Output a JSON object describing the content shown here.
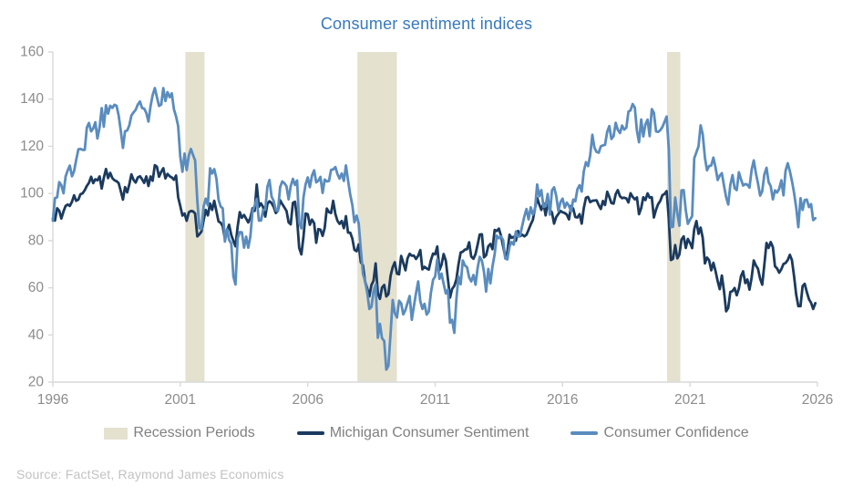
{
  "title": "Consumer sentiment indices",
  "source": "Source: FactSet, Raymond James Economics",
  "colors": {
    "title": "#3779BC",
    "axis_line": "#D9D9D9",
    "tick_label": "#8C8C8C",
    "legend_text": "#808080",
    "source_text": "#C2C2C2",
    "background": "#FFFFFF"
  },
  "legend": {
    "items": [
      {
        "label": "Recession Periods",
        "swatch": "rect",
        "color": "#E5E1CF"
      },
      {
        "label": "Michigan Consumer Sentiment",
        "swatch": "line",
        "color": "#1B3A5E"
      },
      {
        "label": "Consumer Confidence",
        "swatch": "line",
        "color": "#5A8CBE"
      }
    ]
  },
  "chart_data": {
    "type": "line",
    "title": "Consumer sentiment indices",
    "xlabel": "",
    "ylabel": "",
    "grid": false,
    "legend_position": "bottom",
    "x_range": [
      1996,
      2026
    ],
    "y_range": [
      20,
      160
    ],
    "x_ticks": [
      1996,
      2001,
      2006,
      2011,
      2016,
      2021,
      2026
    ],
    "y_ticks": [
      20,
      40,
      60,
      80,
      100,
      120,
      140,
      160
    ],
    "recession_bands": {
      "color": "#E5E1CF",
      "periods": [
        [
          2001.2,
          2001.95
        ],
        [
          2007.95,
          2009.5
        ],
        [
          2020.1,
          2020.62
        ]
      ]
    },
    "series": [
      {
        "name": "Michigan Consumer Sentiment",
        "color": "#1B3A5E",
        "start_year": 1996,
        "frequency": "monthly",
        "values": [
          89.3,
          88.5,
          93.7,
          92.7,
          89.4,
          92.4,
          94.7,
          95.3,
          94.7,
          96.5,
          99.2,
          96.9,
          97.4,
          99.7,
          100.0,
          101.4,
          103.2,
          104.5,
          107.1,
          104.4,
          106.0,
          105.6,
          107.2,
          102.1,
          106.6,
          110.4,
          106.5,
          108.7,
          106.5,
          105.6,
          105.2,
          104.4,
          100.9,
          97.4,
          102.7,
          100.5,
          103.9,
          108.1,
          105.7,
          104.6,
          106.8,
          107.3,
          106.0,
          104.5,
          107.2,
          103.2,
          107.2,
          105.4,
          112.0,
          111.3,
          107.1,
          109.2,
          110.7,
          106.4,
          108.3,
          107.3,
          106.8,
          105.8,
          107.6,
          98.4,
          94.7,
          90.6,
          91.5,
          88.4,
          92.0,
          92.6,
          92.4,
          91.5,
          81.8,
          82.7,
          83.9,
          88.8,
          93.0,
          90.7,
          95.7,
          93.0,
          96.9,
          92.4,
          88.1,
          87.6,
          86.1,
          80.6,
          84.2,
          86.7,
          82.4,
          79.9,
          77.6,
          86.0,
          92.1,
          89.7,
          90.9,
          89.3,
          87.7,
          89.6,
          93.7,
          92.6,
          103.8,
          94.4,
          95.8,
          94.2,
          90.2,
          95.6,
          96.7,
          95.9,
          94.2,
          91.7,
          92.8,
          97.1,
          95.5,
          94.1,
          92.6,
          87.7,
          86.9,
          96.0,
          96.5,
          89.1,
          76.9,
          74.2,
          81.6,
          91.5,
          91.2,
          86.7,
          88.9,
          87.4,
          79.1,
          84.9,
          84.7,
          82.0,
          85.4,
          93.6,
          92.1,
          91.7,
          96.9,
          91.3,
          88.4,
          87.1,
          88.3,
          85.3,
          90.4,
          83.4,
          83.4,
          80.9,
          76.1,
          75.5,
          78.4,
          70.8,
          69.5,
          62.6,
          59.8,
          56.4,
          61.2,
          63.0,
          70.3,
          57.6,
          55.3,
          60.1,
          61.2,
          56.3,
          57.3,
          65.1,
          68.7,
          70.8,
          66.0,
          65.7,
          73.5,
          70.6,
          67.4,
          72.5,
          74.4,
          73.6,
          73.6,
          72.2,
          73.6,
          76.0,
          67.8,
          68.9,
          68.2,
          67.7,
          71.6,
          74.5,
          74.2,
          77.5,
          67.5,
          69.8,
          74.3,
          71.5,
          63.7,
          55.8,
          59.5,
          60.8,
          63.6,
          69.9,
          75.0,
          75.3,
          76.2,
          76.4,
          79.3,
          73.2,
          72.3,
          74.3,
          78.3,
          82.6,
          82.7,
          72.9,
          73.8,
          77.6,
          78.6,
          76.4,
          84.5,
          84.1,
          85.1,
          82.1,
          77.5,
          73.2,
          75.1,
          82.5,
          81.2,
          81.6,
          80.0,
          84.1,
          81.9,
          82.5,
          81.8,
          82.5,
          84.6,
          86.9,
          88.8,
          93.6,
          98.1,
          95.4,
          93.0,
          95.9,
          90.7,
          96.1,
          93.1,
          91.9,
          87.2,
          90.0,
          91.3,
          92.6,
          92.0,
          91.7,
          91.0,
          89.0,
          94.7,
          93.5,
          90.0,
          89.8,
          91.2,
          87.2,
          93.8,
          98.2,
          98.5,
          96.3,
          96.9,
          97.0,
          97.1,
          95.0,
          93.4,
          96.8,
          95.1,
          100.7,
          98.5,
          95.9,
          95.7,
          99.7,
          101.4,
          98.8,
          98.0,
          98.2,
          97.9,
          96.2,
          100.1,
          98.6,
          97.5,
          98.3,
          91.2,
          93.8,
          98.4,
          97.2,
          100.0,
          98.2,
          98.4,
          89.8,
          93.2,
          95.5,
          96.8,
          99.3,
          99.8,
          101.0,
          89.1,
          71.8,
          72.3,
          78.1,
          72.5,
          74.1,
          80.4,
          81.8,
          76.9,
          80.7,
          79.0,
          76.8,
          84.9,
          88.3,
          82.9,
          85.5,
          81.2,
          70.3,
          72.8,
          71.7,
          67.4,
          70.6,
          67.2,
          62.8,
          59.4,
          65.2,
          58.4,
          50.0,
          51.5,
          58.2,
          58.6,
          59.9,
          56.8,
          59.7,
          64.9,
          67.0,
          62.0,
          63.5,
          59.2,
          64.4,
          71.6,
          69.5,
          68.1,
          63.8,
          61.3,
          69.7,
          79.0,
          76.9,
          79.4,
          77.2,
          69.1,
          68.2,
          66.4,
          67.9,
          70.1,
          70.5,
          71.8,
          74.0,
          71.7,
          64.7,
          57.0,
          52.2,
          52.2,
          60.7,
          61.7,
          58.2,
          55.1,
          53.6,
          51.0,
          53.5
        ]
      },
      {
        "name": "Consumer Confidence",
        "color": "#5A8CBE",
        "start_year": 1996,
        "frequency": "monthly",
        "values": [
          88.4,
          98.0,
          98.4,
          104.8,
          103.5,
          100.1,
          107.2,
          109.8,
          111.8,
          107.3,
          109.5,
          114.2,
          118.7,
          118.9,
          118.5,
          118.5,
          127.9,
          129.9,
          126.3,
          127.6,
          130.2,
          123.3,
          128.1,
          136.2,
          128.3,
          137.4,
          133.8,
          137.2,
          136.3,
          137.6,
          137.2,
          133.1,
          126.4,
          119.3,
          126.4,
          126.7,
          128.9,
          133.1,
          134.4,
          135.5,
          137.7,
          139.0,
          136.2,
          136.0,
          134.2,
          130.5,
          137.0,
          141.7,
          144.7,
          140.8,
          137.1,
          137.7,
          144.7,
          139.2,
          143.0,
          140.8,
          142.5,
          135.8,
          132.6,
          128.6,
          115.7,
          109.2,
          116.9,
          109.9,
          116.1,
          118.9,
          116.3,
          114.0,
          97.0,
          85.3,
          84.9,
          94.6,
          97.8,
          95.0,
          110.7,
          108.5,
          110.3,
          106.3,
          97.4,
          94.5,
          93.7,
          79.6,
          84.9,
          80.3,
          78.8,
          64.8,
          61.4,
          81.0,
          83.6,
          83.5,
          77.0,
          81.7,
          77.0,
          81.7,
          92.5,
          94.8,
          97.7,
          88.5,
          88.5,
          93.0,
          93.1,
          102.8,
          105.7,
          98.7,
          96.7,
          92.9,
          92.6,
          102.7,
          105.1,
          104.4,
          103.0,
          97.5,
          103.1,
          106.2,
          103.6,
          105.5,
          87.5,
          85.2,
          98.3,
          103.8,
          106.8,
          102.7,
          107.5,
          109.8,
          104.7,
          105.4,
          107.0,
          100.2,
          105.9,
          105.1,
          105.3,
          110.0,
          110.2,
          111.2,
          108.2,
          106.3,
          108.5,
          105.3,
          111.9,
          105.6,
          99.5,
          95.2,
          87.8,
          90.6,
          87.3,
          76.4,
          65.9,
          62.8,
          58.1,
          51.0,
          51.9,
          58.5,
          61.4,
          38.8,
          44.7,
          38.6,
          37.4,
          25.3,
          26.9,
          40.8,
          54.8,
          49.3,
          47.4,
          54.5,
          53.4,
          48.7,
          50.6,
          53.6,
          56.5,
          46.4,
          52.3,
          57.7,
          62.7,
          54.3,
          51.0,
          53.2,
          48.6,
          49.9,
          57.8,
          63.4,
          64.8,
          72.0,
          63.8,
          66.0,
          61.7,
          57.6,
          59.2,
          45.2,
          46.4,
          40.9,
          55.2,
          64.8,
          61.5,
          71.6,
          69.5,
          68.7,
          64.4,
          62.7,
          65.4,
          61.3,
          68.4,
          73.1,
          71.5,
          66.7,
          58.4,
          68.0,
          61.9,
          69.0,
          74.3,
          82.1,
          81.0,
          81.8,
          80.2,
          72.4,
          72.0,
          77.5,
          79.4,
          78.3,
          83.9,
          81.7,
          82.2,
          86.4,
          90.3,
          93.4,
          89.0,
          94.1,
          91.0,
          93.1,
          103.8,
          98.8,
          101.4,
          94.3,
          94.6,
          99.8,
          91.0,
          101.3,
          102.6,
          99.1,
          92.6,
          96.3,
          97.8,
          94.0,
          96.1,
          94.7,
          92.4,
          97.4,
          96.7,
          101.8,
          103.5,
          100.8,
          109.4,
          113.3,
          111.6,
          116.1,
          124.9,
          119.4,
          117.6,
          117.3,
          120.0,
          120.4,
          120.6,
          126.2,
          128.6,
          123.1,
          124.3,
          130.0,
          127.0,
          125.6,
          128.8,
          127.1,
          127.9,
          134.7,
          135.3,
          137.9,
          136.4,
          126.6,
          121.7,
          131.4,
          124.2,
          129.2,
          131.3,
          124.3,
          135.8,
          134.2,
          126.3,
          126.1,
          126.8,
          128.2,
          130.4,
          132.6,
          118.8,
          85.7,
          85.9,
          98.3,
          91.7,
          86.3,
          101.3,
          101.4,
          92.9,
          87.1,
          88.9,
          90.4,
          114.9,
          117.5,
          120.0,
          128.9,
          125.1,
          115.2,
          109.8,
          111.6,
          111.9,
          115.2,
          111.1,
          105.7,
          107.6,
          108.6,
          103.2,
          98.4,
          95.3,
          103.6,
          107.8,
          102.2,
          101.4,
          109.0,
          106.0,
          103.4,
          104.0,
          103.7,
          102.5,
          110.1,
          114.0,
          108.7,
          104.3,
          99.1,
          101.0,
          108.0,
          110.9,
          104.8,
          103.1,
          97.5,
          101.3,
          100.4,
          101.9,
          105.6,
          99.2,
          109.6,
          112.8,
          109.5,
          105.3,
          100.1,
          93.9,
          85.7,
          98.0,
          93.0,
          97.2,
          97.4,
          94.2,
          95.5,
          88.7,
          89.5
        ]
      }
    ]
  }
}
